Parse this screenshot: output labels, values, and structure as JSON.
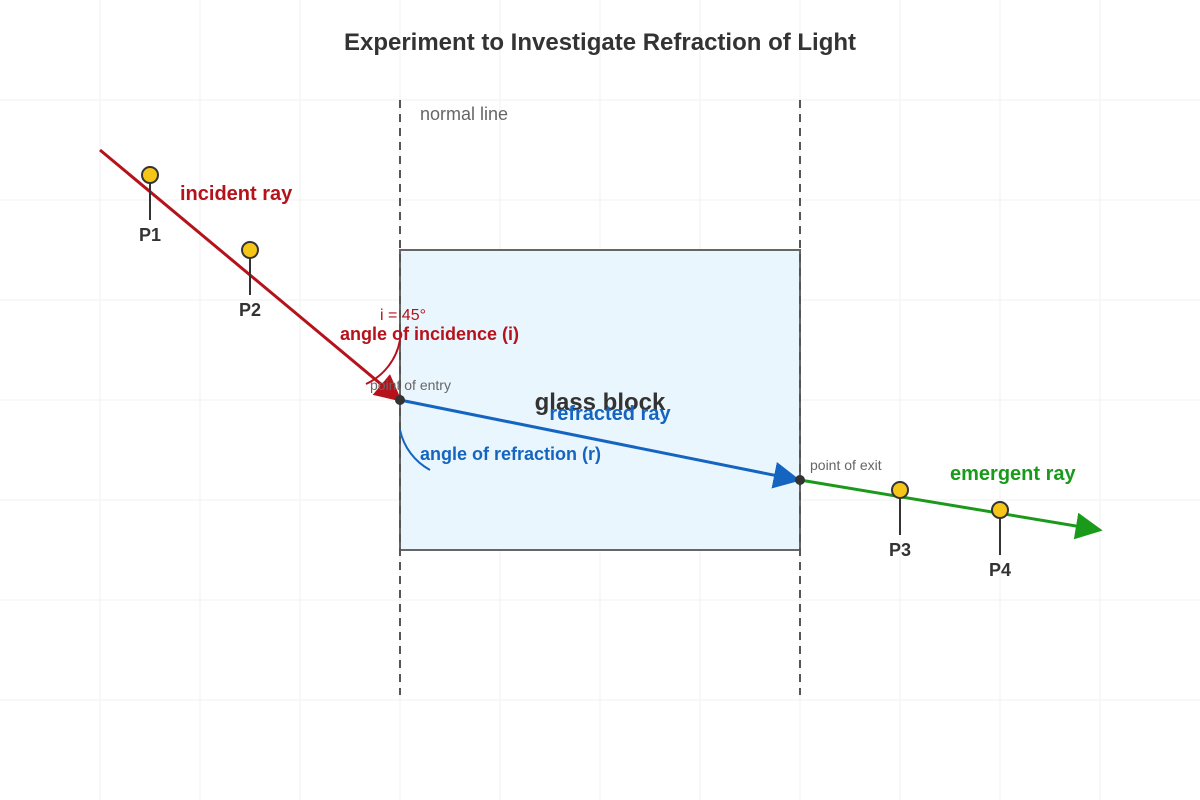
{
  "title": "Experiment to Investigate Refraction of Light",
  "labels": {
    "normal_line": "normal line",
    "incident_ray": "incident ray",
    "angle_value": "i = 45°",
    "angle_of_incidence": "angle of incidence (i)",
    "point_of_entry": "point of entry",
    "glass_block": "glass block",
    "refracted_ray": "refracted ray",
    "angle_of_refraction": "angle of refraction (r)",
    "point_of_exit": "point of exit",
    "emergent_ray": "emergent ray"
  },
  "pins": [
    {
      "label": "P1"
    },
    {
      "label": "P2"
    },
    {
      "label": "P3"
    },
    {
      "label": "P4"
    }
  ],
  "colors": {
    "title": "#333333",
    "incident": "#b5121b",
    "refracted": "#1565c0",
    "emergent": "#1a9a1a",
    "glass_fill": "#eaf6fd",
    "glass_stroke": "#666666",
    "pin_head": "#f5c518",
    "pin_stroke": "#333333",
    "normal": "#555555",
    "grid": "#f2f2f2",
    "small_text": "#666666"
  },
  "icons": {
    "pin": "pin-icon",
    "arrowhead": "arrowhead-icon"
  }
}
